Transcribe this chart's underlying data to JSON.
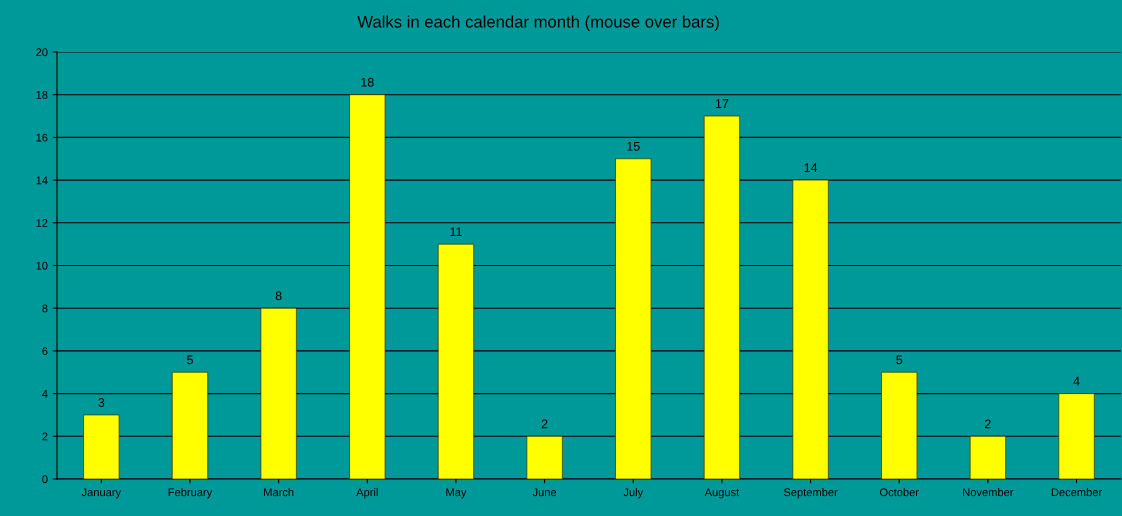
{
  "chart_data": {
    "type": "bar",
    "title": "Walks in each calendar month (mouse over bars)",
    "categories": [
      "January",
      "February",
      "March",
      "April",
      "May",
      "June",
      "July",
      "August",
      "September",
      "October",
      "November",
      "December"
    ],
    "values": [
      3,
      5,
      8,
      18,
      11,
      2,
      15,
      17,
      14,
      5,
      2,
      4
    ],
    "color": "#ffff00",
    "ylim": [
      0,
      20
    ],
    "yticks": [
      0,
      2,
      4,
      6,
      8,
      10,
      12,
      14,
      16,
      18,
      20
    ],
    "grid": "y",
    "data_labels": true,
    "legend": false
  }
}
